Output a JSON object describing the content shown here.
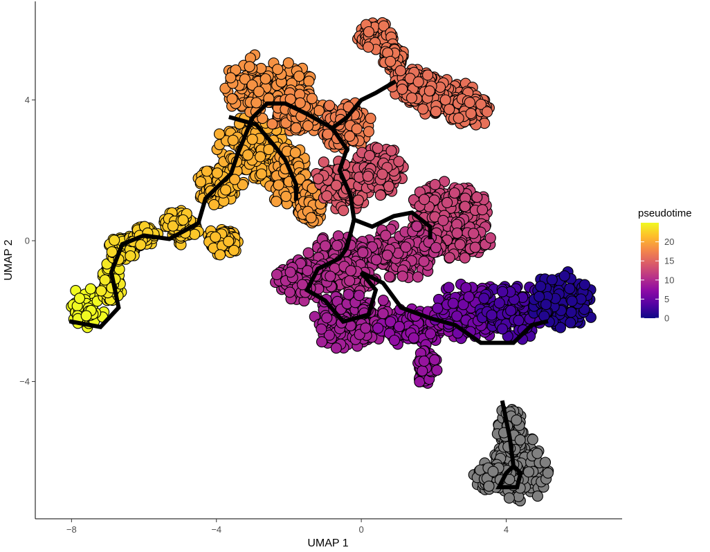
{
  "chart_data": {
    "type": "scatter",
    "title": "",
    "xlabel": "UMAP 1",
    "ylabel": "UMAP 2",
    "xlim": [
      -9,
      7.2
    ],
    "ylim": [
      -7.9,
      6.8
    ],
    "x_ticks": [
      -8,
      -4,
      0,
      4
    ],
    "x_tick_labels": [
      "−8",
      "−4",
      "0",
      "4"
    ],
    "y_ticks": [
      -4,
      0,
      4
    ],
    "y_tick_labels": [
      "−4",
      "0",
      "4"
    ],
    "grid": false,
    "legend": {
      "title": "pseudotime",
      "placement": "right",
      "range": [
        0,
        25
      ],
      "ticks": [
        0,
        5,
        10,
        15,
        20
      ],
      "tick_labels": [
        "0",
        "5",
        "10",
        "15",
        "20"
      ],
      "colormap": [
        "#0d0887",
        "#5302a3",
        "#8b0aa5",
        "#b83289",
        "#db5c68",
        "#f48849",
        "#febd2a",
        "#f0f921"
      ]
    },
    "na_color": "#808080",
    "clusters": [
      {
        "cx": -7.6,
        "cy": -1.9,
        "rx": 0.55,
        "ry": 0.55,
        "pseudotime": 25
      },
      {
        "cx": -6.9,
        "cy": -1.2,
        "rx": 0.3,
        "ry": 0.6,
        "pseudotime": 24
      },
      {
        "cx": -6.6,
        "cy": -0.2,
        "rx": 0.4,
        "ry": 0.4,
        "pseudotime": 23
      },
      {
        "cx": -6.0,
        "cy": 0.1,
        "rx": 0.4,
        "ry": 0.3,
        "pseudotime": 22.5
      },
      {
        "cx": -5.0,
        "cy": 0.4,
        "rx": 0.5,
        "ry": 0.5,
        "pseudotime": 22
      },
      {
        "cx": -3.8,
        "cy": 0.0,
        "rx": 0.5,
        "ry": 0.4,
        "pseudotime": 21.5
      },
      {
        "cx": -4.0,
        "cy": 1.6,
        "rx": 0.6,
        "ry": 0.6,
        "pseudotime": 21
      },
      {
        "cx": -3.0,
        "cy": 2.6,
        "rx": 1.0,
        "ry": 1.0,
        "pseudotime": 20.5
      },
      {
        "cx": -2.0,
        "cy": 1.8,
        "rx": 0.6,
        "ry": 0.9,
        "pseudotime": 19.5
      },
      {
        "cx": -1.4,
        "cy": 1.0,
        "rx": 0.35,
        "ry": 0.6,
        "pseudotime": 19
      },
      {
        "cx": -2.6,
        "cy": 4.4,
        "rx": 1.2,
        "ry": 0.9,
        "pseudotime": 18.5
      },
      {
        "cx": -1.8,
        "cy": 3.6,
        "rx": 0.8,
        "ry": 0.6,
        "pseudotime": 18
      },
      {
        "cx": -0.4,
        "cy": 3.3,
        "rx": 0.7,
        "ry": 0.7,
        "pseudotime": 17
      },
      {
        "cx": 0.4,
        "cy": 5.8,
        "rx": 0.5,
        "ry": 0.4,
        "pseudotime": 16.5
      },
      {
        "cx": 0.9,
        "cy": 5.2,
        "rx": 0.3,
        "ry": 0.4,
        "pseudotime": 16.5
      },
      {
        "cx": 2.3,
        "cy": 4.1,
        "rx": 1.1,
        "ry": 0.55,
        "pseudotime": 16
      },
      {
        "cx": 3.0,
        "cy": 3.7,
        "rx": 0.6,
        "ry": 0.5,
        "pseudotime": 16
      },
      {
        "cx": 1.4,
        "cy": 4.4,
        "rx": 0.6,
        "ry": 0.5,
        "pseudotime": 16
      },
      {
        "cx": -0.5,
        "cy": 1.6,
        "rx": 0.8,
        "ry": 0.8,
        "pseudotime": 14
      },
      {
        "cx": 0.5,
        "cy": 2.0,
        "rx": 0.7,
        "ry": 0.7,
        "pseudotime": 13.5
      },
      {
        "cx": 2.4,
        "cy": 0.8,
        "rx": 1.1,
        "ry": 0.9,
        "pseudotime": 12.5
      },
      {
        "cx": 2.6,
        "cy": 0.0,
        "rx": 1.0,
        "ry": 0.6,
        "pseudotime": 12
      },
      {
        "cx": 1.2,
        "cy": -0.3,
        "rx": 0.9,
        "ry": 0.8,
        "pseudotime": 11
      },
      {
        "cx": -0.5,
        "cy": -0.6,
        "rx": 1.0,
        "ry": 0.9,
        "pseudotime": 10.5
      },
      {
        "cx": -1.6,
        "cy": -1.1,
        "rx": 0.8,
        "ry": 0.6,
        "pseudotime": 10
      },
      {
        "cx": -0.2,
        "cy": -2.3,
        "rx": 1.2,
        "ry": 0.8,
        "pseudotime": 9
      },
      {
        "cx": 1.6,
        "cy": -2.4,
        "rx": 1.1,
        "ry": 0.6,
        "pseudotime": 7.5
      },
      {
        "cx": 1.8,
        "cy": -3.6,
        "rx": 0.3,
        "ry": 0.5,
        "pseudotime": 8
      },
      {
        "cx": 3.0,
        "cy": -2.0,
        "rx": 1.0,
        "ry": 0.8,
        "pseudotime": 5.5
      },
      {
        "cx": 4.2,
        "cy": -2.0,
        "rx": 0.9,
        "ry": 0.8,
        "pseudotime": 3
      },
      {
        "cx": 5.6,
        "cy": -1.7,
        "rx": 0.9,
        "ry": 0.8,
        "pseudotime": 1
      },
      {
        "cx": 4.4,
        "cy": -6.5,
        "rx": 0.8,
        "ry": 0.9,
        "pseudotime": null
      },
      {
        "cx": 4.1,
        "cy": -5.4,
        "rx": 0.35,
        "ry": 0.7,
        "pseudotime": null
      },
      {
        "cx": 3.6,
        "cy": -6.7,
        "rx": 0.5,
        "ry": 0.4,
        "pseudotime": null
      }
    ],
    "trajectory": [
      [
        [
          -8.0,
          -2.3
        ],
        [
          -7.2,
          -2.45
        ],
        [
          -6.7,
          -1.9
        ],
        [
          -6.9,
          -0.9
        ],
        [
          -6.6,
          -0.1
        ],
        [
          -6.0,
          0.15
        ],
        [
          -5.3,
          0.05
        ],
        [
          -4.5,
          0.5
        ],
        [
          -4.3,
          1.2
        ],
        [
          -3.6,
          1.9
        ],
        [
          -3.4,
          2.5
        ],
        [
          -3.2,
          3.0
        ],
        [
          -3.0,
          3.5
        ],
        [
          -2.6,
          3.9
        ],
        [
          -2.1,
          3.9
        ],
        [
          -1.5,
          3.6
        ],
        [
          -0.8,
          3.2
        ],
        [
          -0.4,
          3.5
        ],
        [
          0.0,
          4.0
        ],
        [
          0.4,
          4.2
        ],
        [
          0.9,
          4.5
        ]
      ],
      [
        [
          -3.6,
          3.5
        ],
        [
          -2.9,
          3.3
        ],
        [
          -2.4,
          2.7
        ],
        [
          -2.1,
          2.3
        ],
        [
          -1.8,
          1.6
        ],
        [
          -1.8,
          1.2
        ]
      ],
      [
        [
          -0.8,
          3.2
        ],
        [
          -0.4,
          2.6
        ],
        [
          -0.6,
          2.0
        ],
        [
          -0.3,
          1.3
        ],
        [
          -0.2,
          0.6
        ],
        [
          -0.4,
          -0.2
        ],
        [
          -0.6,
          -0.5
        ],
        [
          -1.2,
          -0.8
        ],
        [
          -1.5,
          -1.4
        ],
        [
          -1.0,
          -1.7
        ],
        [
          -0.5,
          -2.3
        ],
        [
          0.2,
          -2.1
        ],
        [
          0.4,
          -1.4
        ],
        [
          0.0,
          -0.9
        ],
        [
          0.6,
          -1.2
        ],
        [
          1.1,
          -1.9
        ],
        [
          1.9,
          -2.2
        ],
        [
          2.6,
          -2.4
        ],
        [
          3.3,
          -2.9
        ],
        [
          4.2,
          -2.9
        ],
        [
          4.7,
          -2.4
        ],
        [
          5.1,
          -2.3
        ]
      ],
      [
        [
          -0.2,
          0.6
        ],
        [
          0.3,
          0.4
        ],
        [
          0.9,
          0.7
        ],
        [
          1.4,
          0.8
        ],
        [
          1.9,
          0.4
        ],
        [
          1.9,
          0.1
        ]
      ],
      [
        [
          3.9,
          -4.6
        ],
        [
          4.1,
          -5.6
        ],
        [
          4.2,
          -6.4
        ],
        [
          4.4,
          -6.6
        ],
        [
          4.3,
          -7.0
        ],
        [
          3.8,
          -7.0
        ],
        [
          4.0,
          -6.6
        ],
        [
          4.2,
          -6.4
        ]
      ]
    ]
  }
}
